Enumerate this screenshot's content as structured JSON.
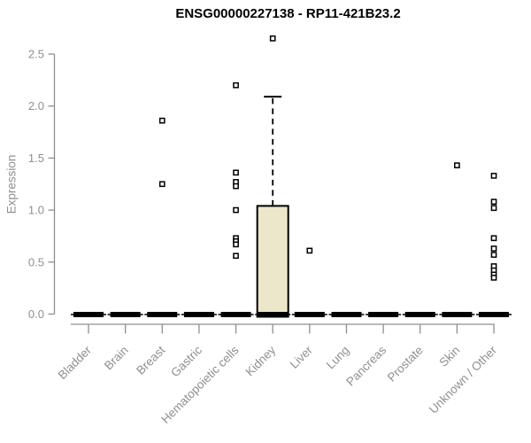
{
  "chart_data": {
    "type": "boxplot",
    "title": "ENSG00000227138 - RP11-421B23.2",
    "ylabel": "Expression",
    "xlabel": "",
    "ylim": [
      0,
      2.5
    ],
    "grid": false,
    "legend": "none",
    "yticks": [
      {
        "value": 0.0,
        "label": "0.0"
      },
      {
        "value": 0.5,
        "label": "0.5"
      },
      {
        "value": 1.0,
        "label": "1.0"
      },
      {
        "value": 1.5,
        "label": "1.5"
      },
      {
        "value": 2.0,
        "label": "2.0"
      },
      {
        "value": 2.5,
        "label": "2.5"
      }
    ],
    "categories": [
      "Bladder",
      "Brain",
      "Breast",
      "Gastric",
      "Hematopoietic cells",
      "Kidney",
      "Liver",
      "Lung",
      "Pancreas",
      "Prostate",
      "Skin",
      "Unknown / Other"
    ],
    "boxes": [
      {
        "category": "Bladder",
        "whisker_low": 0,
        "q1": 0,
        "median": 0,
        "q3": 0,
        "whisker_high": 0,
        "outliers": []
      },
      {
        "category": "Brain",
        "whisker_low": 0,
        "q1": 0,
        "median": 0,
        "q3": 0,
        "whisker_high": 0,
        "outliers": []
      },
      {
        "category": "Breast",
        "whisker_low": 0,
        "q1": 0,
        "median": 0,
        "q3": 0,
        "whisker_high": 0,
        "outliers": [
          1.86,
          1.25
        ]
      },
      {
        "category": "Gastric",
        "whisker_low": 0,
        "q1": 0,
        "median": 0,
        "q3": 0,
        "whisker_high": 0,
        "outliers": []
      },
      {
        "category": "Hematopoietic cells",
        "whisker_low": 0,
        "q1": 0,
        "median": 0,
        "q3": 0,
        "whisker_high": 0,
        "outliers": [
          2.2,
          1.36,
          1.27,
          1.23,
          1.0,
          0.73,
          0.7,
          0.67,
          0.56
        ]
      },
      {
        "category": "Kidney",
        "whisker_low": 0,
        "q1": 0,
        "median": 0.02,
        "q3": 1.04,
        "whisker_high": 2.09,
        "outliers": [
          2.65
        ]
      },
      {
        "category": "Liver",
        "whisker_low": 0,
        "q1": 0,
        "median": 0,
        "q3": 0,
        "whisker_high": 0,
        "outliers": [
          0.61
        ]
      },
      {
        "category": "Lung",
        "whisker_low": 0,
        "q1": 0,
        "median": 0,
        "q3": 0,
        "whisker_high": 0,
        "outliers": []
      },
      {
        "category": "Pancreas",
        "whisker_low": 0,
        "q1": 0,
        "median": 0,
        "q3": 0,
        "whisker_high": 0,
        "outliers": []
      },
      {
        "category": "Prostate",
        "whisker_low": 0,
        "q1": 0,
        "median": 0,
        "q3": 0,
        "whisker_high": 0,
        "outliers": []
      },
      {
        "category": "Skin",
        "whisker_low": 0,
        "q1": 0,
        "median": 0,
        "q3": 0,
        "whisker_high": 0,
        "outliers": [
          1.43
        ]
      },
      {
        "category": "Unknown / Other",
        "whisker_low": 0,
        "q1": 0,
        "median": 0,
        "q3": 0,
        "whisker_high": 0,
        "outliers": [
          1.33,
          1.08,
          1.02,
          0.73,
          0.63,
          0.57,
          0.46,
          0.42,
          0.38,
          0.35
        ]
      }
    ],
    "colors": {
      "box_fill": "#ECE6CB",
      "box_border": "#000000",
      "axis": "#8f8f8f",
      "tick_labels": "#8f8f8f",
      "title": "#000000",
      "background": "#ffffff"
    }
  }
}
